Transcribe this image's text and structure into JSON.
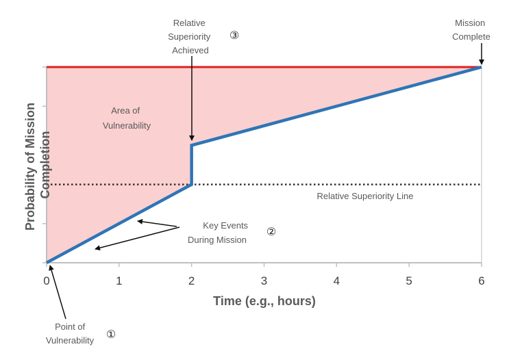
{
  "chart_data": {
    "type": "line",
    "xlabel": "Time (e.g., hours)",
    "ylabel": "Probability of Mission Completion",
    "xlim": [
      0,
      6
    ],
    "ylim": [
      0,
      5
    ],
    "x_ticks": [
      "0",
      "1",
      "2",
      "3",
      "4",
      "5",
      "6"
    ],
    "y_ticks_labeled": false,
    "grid": false,
    "colors": {
      "mission_line": "#2e75b6",
      "completion_line": "#e02020",
      "vulnerability_fill": "#fbd0d0",
      "superiority_line": "#333333",
      "axis": "#bfbfbf"
    },
    "series": [
      {
        "points": [
          [
            0,
            0
          ],
          [
            2,
            2
          ],
          [
            2,
            3
          ],
          [
            6,
            5
          ]
        ]
      }
    ],
    "mission_complete_level": 5,
    "relative_superiority_level": 2,
    "annotations": {
      "area": [
        "Area of",
        "Vulnerability"
      ],
      "superiority_line": "Relative Superiority Line",
      "key_events": [
        "Key Events",
        "During Mission"
      ],
      "superiority_achieved": [
        "Relative",
        "Superiority",
        "Achieved"
      ],
      "mission_complete": [
        "Mission",
        "Complete"
      ],
      "point_of_vulnerability": [
        "Point of",
        "Vulnerability"
      ],
      "marker_1": "①",
      "marker_2": "②",
      "marker_3": "③"
    }
  }
}
